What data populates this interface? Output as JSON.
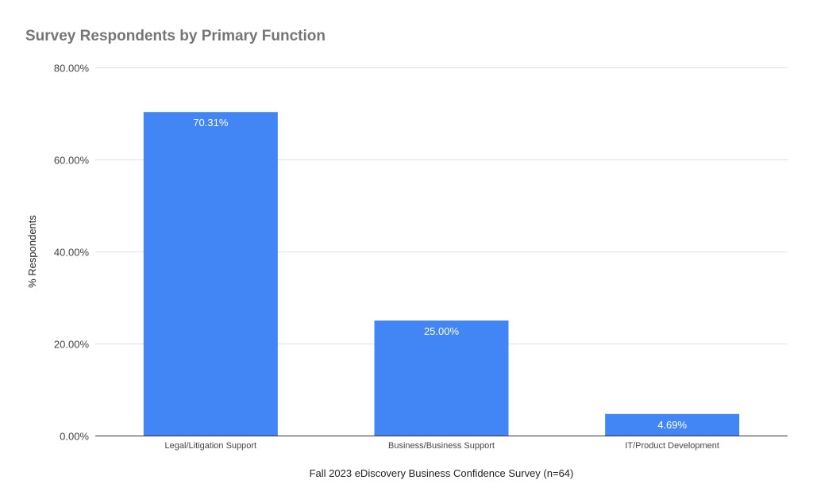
{
  "chart_data": {
    "type": "bar",
    "title": "Survey Respondents by Primary Function",
    "xlabel": "Fall 2023 eDiscovery Business Confidence Survey (n=64)",
    "ylabel": "% Respondents",
    "categories": [
      "Legal/Litigation Support",
      "Business/Business Support",
      "IT/Product Development"
    ],
    "values": [
      70.31,
      25.0,
      4.69
    ],
    "data_labels": [
      "70.31%",
      "25.00%",
      "4.69%"
    ],
    "ylim": [
      0,
      80
    ],
    "yticks": [
      0,
      20,
      40,
      60,
      80
    ],
    "ytick_labels": [
      "0.00%",
      "20.00%",
      "40.00%",
      "60.00%",
      "80.00%"
    ],
    "grid": true,
    "legend": "none",
    "bar_color": "#4285f4"
  }
}
